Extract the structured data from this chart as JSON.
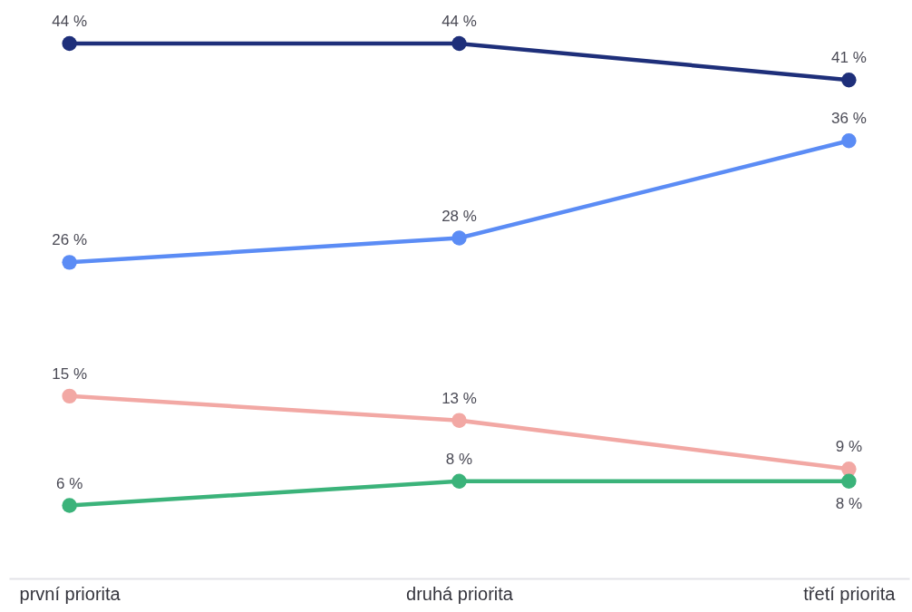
{
  "chart_data": {
    "type": "line",
    "categories": [
      "první priorita",
      "druhá priorita",
      "třetí priorita"
    ],
    "series": [
      {
        "color": "#1e2f7a",
        "values": [
          44,
          44,
          41
        ],
        "value_labels": [
          "44 %",
          "44 %",
          "41 %"
        ]
      },
      {
        "color": "#5b8cf5",
        "values": [
          26,
          28,
          36
        ],
        "value_labels": [
          "26 %",
          "28 %",
          "36 %"
        ]
      },
      {
        "color": "#f2a8a4",
        "values": [
          15,
          13,
          9
        ],
        "value_labels": [
          "15 %",
          "13 %",
          "9 %"
        ]
      },
      {
        "color": "#3bb37a",
        "values": [
          6,
          8,
          8
        ],
        "value_labels": [
          "6 %",
          "8 %",
          "8 %"
        ]
      }
    ],
    "tick_labels": "x",
    "marker": "circle",
    "line_style": "solid",
    "grid": false
  }
}
